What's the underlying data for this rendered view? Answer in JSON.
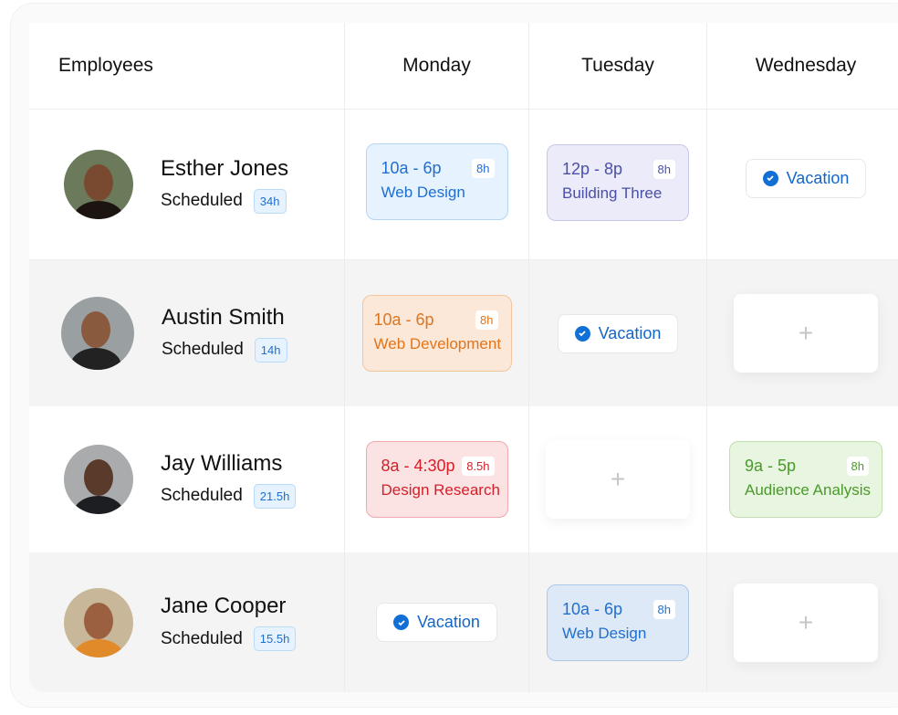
{
  "header": {
    "employees": "Employees",
    "days": [
      "Monday",
      "Tuesday",
      "Wednesday"
    ]
  },
  "scheduled_label": "Scheduled",
  "vacation_label": "Vacation",
  "add_label": "+",
  "employees": [
    {
      "name": "Esther Jones",
      "hours": "34h",
      "shifts": [
        {
          "time": "10a - 6p",
          "task": "Web Design",
          "dur": "8h",
          "color": "#1f6fd1"
        },
        {
          "time": "12p - 8p",
          "task": "Building Three",
          "dur": "8h",
          "color": "#4a4fa8"
        }
      ]
    },
    {
      "name": "Austin Smith",
      "hours": "14h",
      "shifts": [
        {
          "time": "10a - 6p",
          "task": "Web Development",
          "dur": "8h",
          "color": "#e2741b"
        }
      ]
    },
    {
      "name": "Jay Williams",
      "hours": "21.5h",
      "shifts": [
        {
          "time": "8a - 4:30p",
          "task": "Design Research",
          "dur": "8.5h",
          "color": "#d41e28"
        },
        {
          "time": "9a - 5p",
          "task": "Audience Analysis",
          "dur": "8h",
          "color": "#4a9a2a"
        }
      ]
    },
    {
      "name": "Jane Cooper",
      "hours": "15.5h",
      "shifts": [
        {
          "time": "10a - 6p",
          "task": "Web Design",
          "dur": "8h",
          "color": "#1f6fd1"
        }
      ]
    }
  ]
}
